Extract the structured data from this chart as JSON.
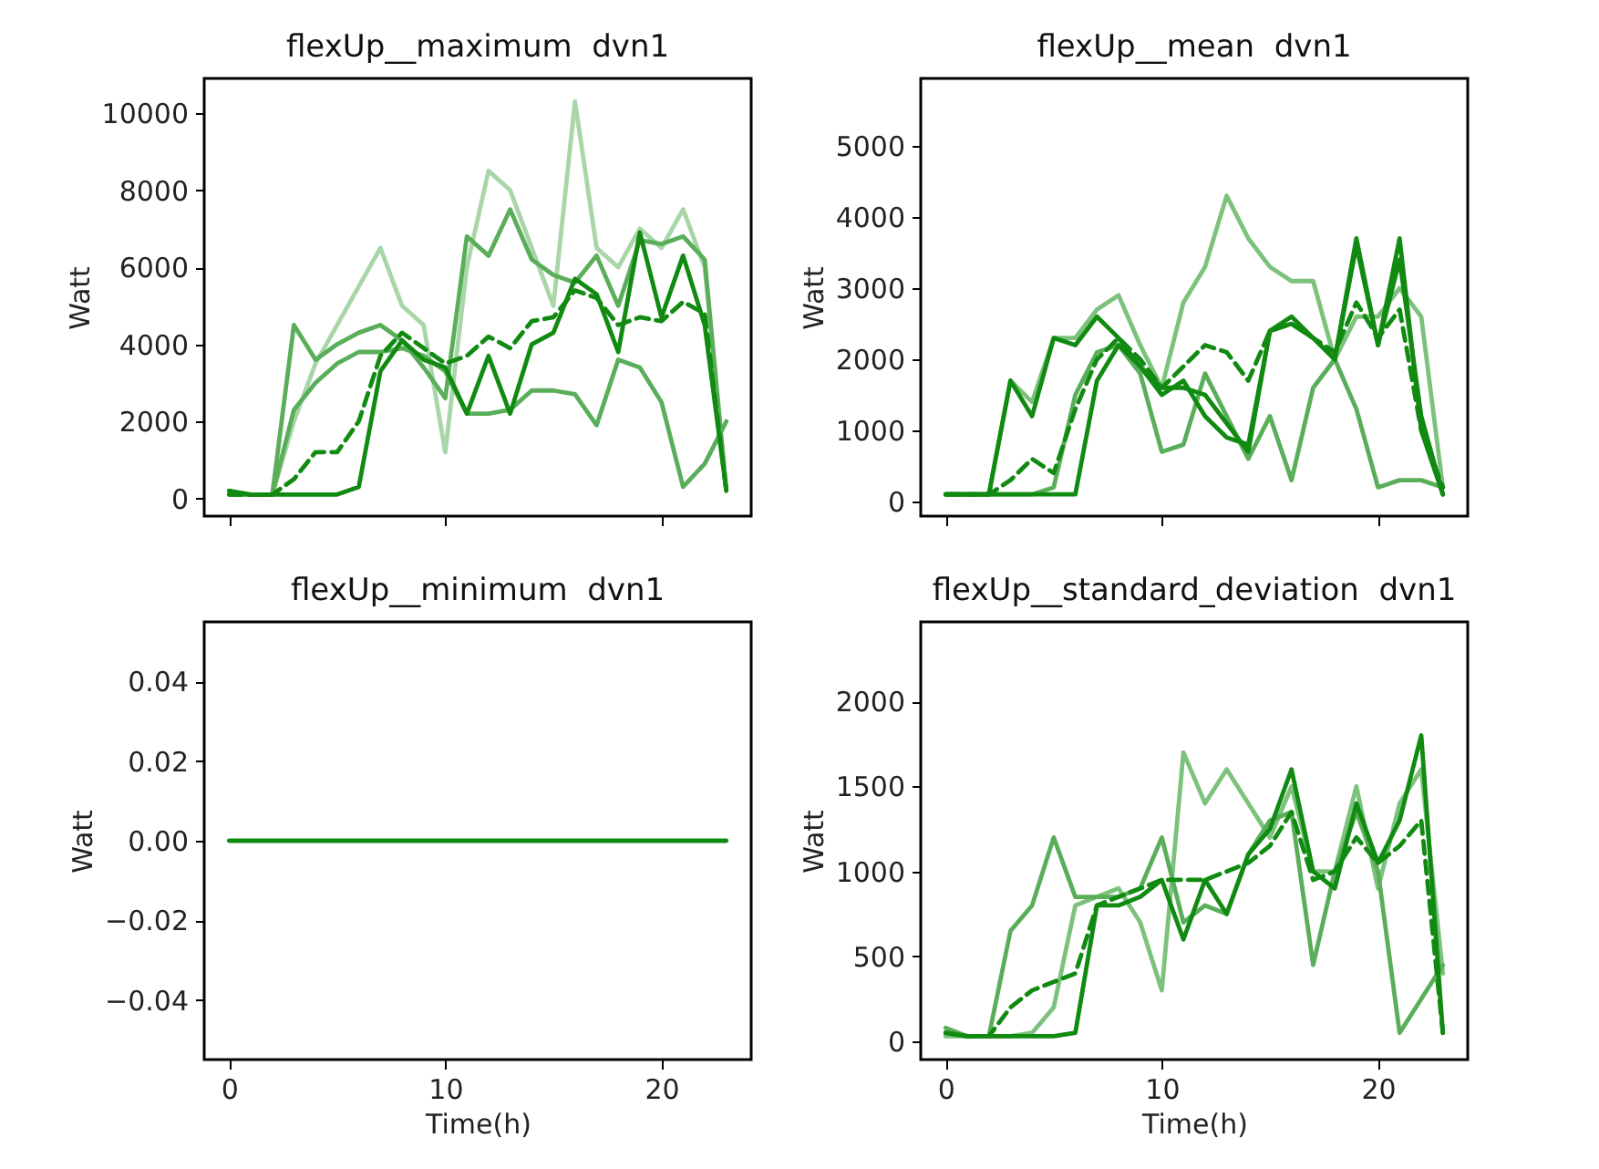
{
  "chart_data": [
    {
      "type": "line",
      "title": "flexUp__maximum  dvn1",
      "ylabel": "Watt",
      "x": [
        0,
        1,
        2,
        3,
        4,
        5,
        6,
        7,
        8,
        9,
        10,
        11,
        12,
        13,
        14,
        15,
        16,
        17,
        18,
        19,
        20,
        21,
        22,
        23
      ],
      "xlim": [
        -1.15,
        24.15
      ],
      "xticks": [
        0,
        10,
        20
      ],
      "ylim": [
        -460,
        10900
      ],
      "yticks": [
        0,
        2000,
        4000,
        6000,
        8000,
        10000
      ],
      "tick_labels": "y",
      "grid": false,
      "series": [
        {
          "color": "#a8d6a8",
          "values": [
            100,
            100,
            100,
            2000,
            3500,
            4500,
            5500,
            6500,
            5000,
            4500,
            1200,
            6000,
            8500,
            8000,
            6500,
            5000,
            10300,
            6500,
            6000,
            7000,
            6500,
            7500,
            6000,
            200
          ]
        },
        {
          "color": "#5aae5a",
          "values": [
            100,
            100,
            100,
            4500,
            3600,
            4000,
            4300,
            4500,
            4100,
            3400,
            2600,
            6800,
            6300,
            7500,
            6200,
            5800,
            5600,
            6300,
            5000,
            6700,
            6600,
            6800,
            6200,
            200
          ]
        },
        {
          "color": "#5aae5a",
          "values": [
            100,
            100,
            100,
            2300,
            3000,
            3500,
            3800,
            3800,
            3900,
            3700,
            3300,
            2200,
            2200,
            2300,
            2800,
            2800,
            2700,
            1900,
            3600,
            3400,
            2500,
            300,
            900,
            2000
          ]
        },
        {
          "color": "#118a11",
          "line_style": "dashed",
          "values": [
            100,
            100,
            100,
            500,
            1200,
            1200,
            2000,
            3700,
            4300,
            3900,
            3500,
            3700,
            4200,
            3900,
            4600,
            4700,
            5400,
            5200,
            4500,
            4700,
            4600,
            5100,
            4800,
            200
          ]
        },
        {
          "color": "#118a11",
          "values": [
            200,
            100,
            100,
            100,
            100,
            100,
            300,
            3300,
            4100,
            3600,
            3400,
            2200,
            3700,
            2200,
            4000,
            4300,
            5700,
            5300,
            3800,
            6900,
            4700,
            6300,
            4500,
            200
          ]
        }
      ]
    },
    {
      "type": "line",
      "title": "flexUp__mean  dvn1",
      "ylabel": "Watt",
      "x": [
        0,
        1,
        2,
        3,
        4,
        5,
        6,
        7,
        8,
        9,
        10,
        11,
        12,
        13,
        14,
        15,
        16,
        17,
        18,
        19,
        20,
        21,
        22,
        23
      ],
      "xlim": [
        -1.15,
        24.15
      ],
      "xticks": [
        0,
        10,
        20
      ],
      "ylim": [
        -205,
        5950
      ],
      "yticks": [
        0,
        1000,
        2000,
        3000,
        4000,
        5000
      ],
      "tick_labels": "y",
      "grid": false,
      "series": [
        {
          "color": "#7cc27c",
          "values": [
            100,
            100,
            100,
            1700,
            1400,
            2300,
            2300,
            2700,
            2900,
            2200,
            1600,
            2800,
            3300,
            4300,
            3700,
            3300,
            3100,
            3100,
            2000,
            2600,
            2600,
            3000,
            2600,
            200
          ]
        },
        {
          "color": "#5aae5a",
          "values": [
            100,
            100,
            100,
            100,
            100,
            200,
            1500,
            2100,
            2200,
            1800,
            700,
            800,
            1800,
            1200,
            600,
            1200,
            300,
            1600,
            2000,
            1300,
            200,
            300,
            300,
            200
          ]
        },
        {
          "color": "#118a11",
          "values": [
            100,
            100,
            100,
            1700,
            1200,
            2300,
            2200,
            2600,
            2300,
            1900,
            1500,
            1700,
            1200,
            900,
            800,
            2400,
            2500,
            2300,
            2000,
            3600,
            2200,
            3700,
            1000,
            100
          ]
        },
        {
          "color": "#118a11",
          "line_style": "dashed",
          "values": [
            100,
            100,
            100,
            300,
            600,
            400,
            1300,
            2000,
            2300,
            2000,
            1600,
            1900,
            2200,
            2100,
            1700,
            2400,
            2500,
            2300,
            2100,
            2800,
            2300,
            2700,
            1000,
            200
          ]
        },
        {
          "color": "#118a11",
          "values": [
            100,
            100,
            100,
            100,
            100,
            100,
            100,
            1700,
            2200,
            1900,
            1600,
            1600,
            1500,
            1100,
            700,
            2400,
            2600,
            2300,
            2000,
            3700,
            2200,
            3400,
            1200,
            100
          ]
        }
      ]
    },
    {
      "type": "line",
      "title": "flexUp__minimum  dvn1",
      "ylabel": "Watt",
      "xlabel": "Time(h)",
      "x": [
        0,
        1,
        2,
        3,
        4,
        5,
        6,
        7,
        8,
        9,
        10,
        11,
        12,
        13,
        14,
        15,
        16,
        17,
        18,
        19,
        20,
        21,
        22,
        23
      ],
      "xlim": [
        -1.15,
        24.15
      ],
      "xticks": [
        0,
        10,
        20
      ],
      "ylim": [
        -0.055,
        0.055
      ],
      "yticks": [
        {
          "value": -0.04,
          "label": "−0.04"
        },
        {
          "value": -0.02,
          "label": "−0.02"
        },
        {
          "value": 0,
          "label": "0.00"
        },
        {
          "value": 0.02,
          "label": "0.02"
        },
        {
          "value": 0.04,
          "label": "0.04"
        }
      ],
      "grid": false,
      "series": [
        {
          "color": "#118a11",
          "values": [
            0,
            0,
            0,
            0,
            0,
            0,
            0,
            0,
            0,
            0,
            0,
            0,
            0,
            0,
            0,
            0,
            0,
            0,
            0,
            0,
            0,
            0,
            0,
            0
          ]
        }
      ]
    },
    {
      "type": "line",
      "title": "flexUp__standard_deviation  dvn1",
      "ylabel": "Watt",
      "xlabel": "Time(h)",
      "x": [
        0,
        1,
        2,
        3,
        4,
        5,
        6,
        7,
        8,
        9,
        10,
        11,
        12,
        13,
        14,
        15,
        16,
        17,
        18,
        19,
        20,
        21,
        22,
        23
      ],
      "xlim": [
        -1.15,
        24.15
      ],
      "xticks": [
        0,
        10,
        20
      ],
      "ylim": [
        -107,
        2468
      ],
      "yticks": [
        0,
        500,
        1000,
        1500,
        2000
      ],
      "grid": false,
      "series": [
        {
          "color": "#7cc27c",
          "values": [
            30,
            30,
            30,
            30,
            50,
            200,
            800,
            850,
            900,
            700,
            300,
            1700,
            1400,
            1600,
            1400,
            1200,
            1500,
            1000,
            1000,
            1500,
            900,
            1400,
            1600,
            400
          ]
        },
        {
          "color": "#5aae5a",
          "values": [
            80,
            30,
            30,
            650,
            800,
            1200,
            850,
            850,
            850,
            900,
            1200,
            700,
            800,
            750,
            1100,
            1300,
            1350,
            450,
            1000,
            1350,
            1000,
            50,
            250,
            450
          ]
        },
        {
          "color": "#118a11",
          "line_style": "dashed",
          "values": [
            50,
            30,
            30,
            200,
            300,
            350,
            400,
            800,
            850,
            900,
            950,
            950,
            950,
            1000,
            1050,
            1150,
            1350,
            950,
            1000,
            1200,
            1050,
            1150,
            1300,
            50
          ]
        },
        {
          "color": "#118a11",
          "values": [
            50,
            30,
            30,
            30,
            30,
            30,
            50,
            800,
            800,
            850,
            950,
            600,
            950,
            750,
            1100,
            1250,
            1600,
            1000,
            900,
            1400,
            1050,
            1300,
            1800,
            50
          ]
        }
      ]
    }
  ]
}
